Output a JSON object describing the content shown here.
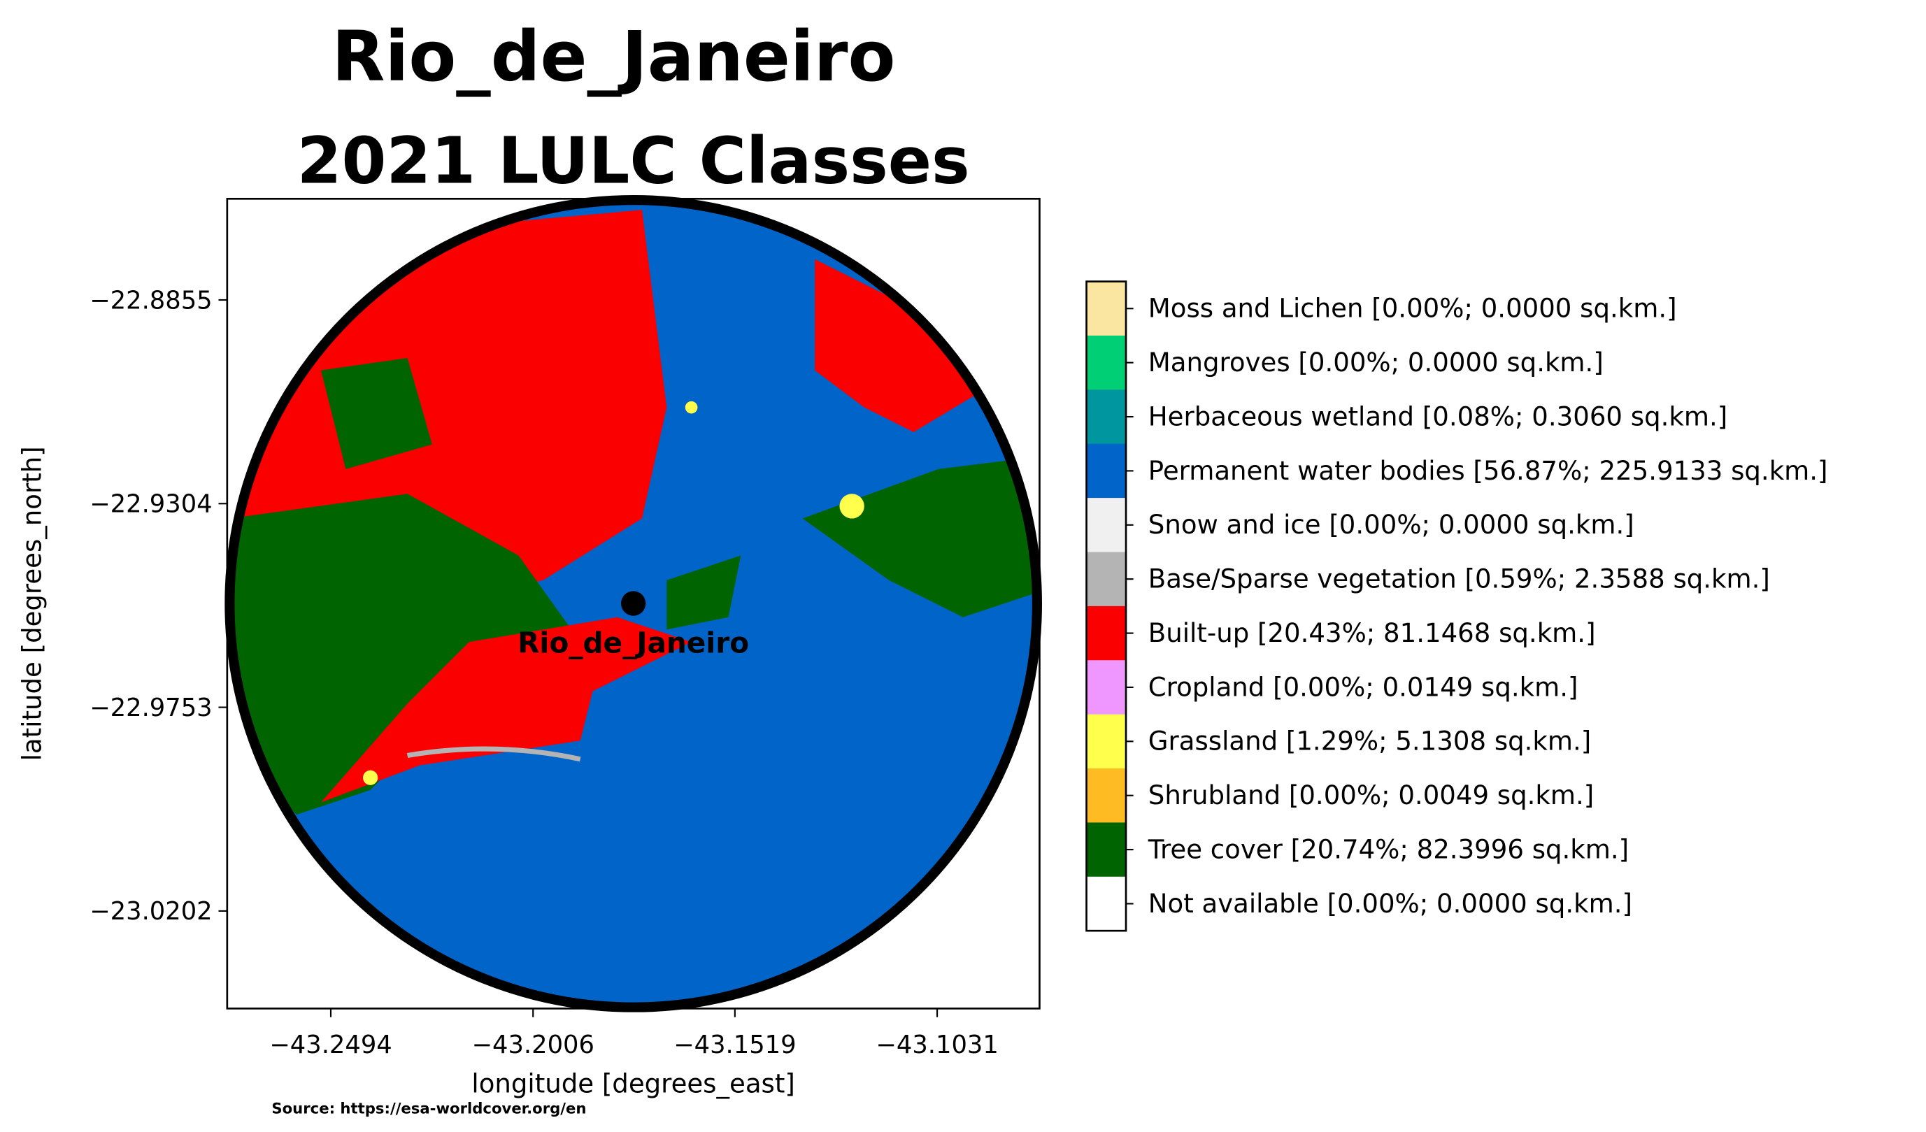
{
  "chart_data": {
    "type": "map",
    "title": "Rio_de_Janeiro",
    "subtitle": "2021 LULC Classes",
    "xlabel": "longitude [degrees_east]",
    "ylabel": "latitude [degrees_north]",
    "source": "Source: https://esa-worldcover.org/en",
    "xlim": [
      -43.2744,
      -43.0784
    ],
    "ylim": [
      -23.0417,
      -22.8632
    ],
    "xticks": [
      {
        "value": -43.2494,
        "label": "−43.2494"
      },
      {
        "value": -43.2006,
        "label": "−43.2006"
      },
      {
        "value": -43.1519,
        "label": "−43.1519"
      },
      {
        "value": -43.1031,
        "label": "−43.1031"
      }
    ],
    "yticks": [
      {
        "value": -22.8855,
        "label": "−22.8855"
      },
      {
        "value": -22.9304,
        "label": "−22.9304"
      },
      {
        "value": -22.9753,
        "label": "−22.9753"
      },
      {
        "value": -23.0202,
        "label": "−23.0202"
      }
    ],
    "city": {
      "name": "Rio_de_Janeiro",
      "x": -43.1764,
      "y": -22.9524
    },
    "legend": [
      {
        "label": "Moss and Lichen [0.00%; 0.0000 sq.km.]",
        "color": "#fae6a0"
      },
      {
        "label": "Mangroves [0.00%; 0.0000 sq.km.]",
        "color": "#00cf75"
      },
      {
        "label": "Herbaceous wetland [0.08%; 0.3060 sq.km.]",
        "color": "#0096a0"
      },
      {
        "label": "Permanent water bodies [56.87%; 225.9133 sq.km.]",
        "color": "#0064c8"
      },
      {
        "label": "Snow and ice [0.00%; 0.0000 sq.km.]",
        "color": "#f0f0f0"
      },
      {
        "label": "Base/Sparse vegetation [0.59%; 2.3588 sq.km.]",
        "color": "#b4b4b4"
      },
      {
        "label": "Built-up [20.43%; 81.1468 sq.km.]",
        "color": "#fa0000"
      },
      {
        "label": "Cropland [0.00%; 0.0149 sq.km.]",
        "color": "#f096ff"
      },
      {
        "label": "Grassland [1.29%; 5.1308 sq.km.]",
        "color": "#ffff4c"
      },
      {
        "label": "Shrubland [0.00%; 0.0049 sq.km.]",
        "color": "#ffbb22"
      },
      {
        "label": "Tree cover [20.74%; 82.3996 sq.km.]",
        "color": "#006400"
      },
      {
        "label": "Not available [0.00%; 0.0000 sq.km.]",
        "color": "#ffffff"
      }
    ]
  }
}
